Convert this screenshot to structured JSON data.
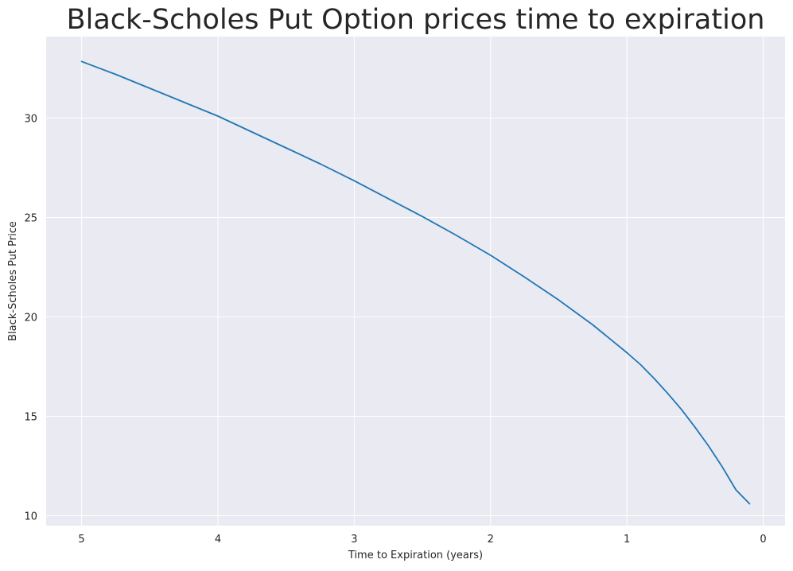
{
  "chart_data": {
    "type": "line",
    "title": "Black-Scholes Put Option prices time to expiration",
    "xlabel": "Time to Expiration (years)",
    "ylabel": "Black-Scholes Put Price",
    "xlim": [
      5.26,
      -0.16
    ],
    "ylim": [
      9.5,
      34.1
    ],
    "x_axis_inverted": true,
    "grid": true,
    "background_color": "#eaeaf2",
    "grid_color": "#ffffff",
    "line_color": "#1f77b4",
    "x_ticks": [
      5,
      4,
      3,
      2,
      1,
      0
    ],
    "x_tick_labels": [
      "5",
      "4",
      "3",
      "2",
      "1",
      "0"
    ],
    "y_ticks": [
      10,
      15,
      20,
      25,
      30
    ],
    "y_tick_labels": [
      "10",
      "15",
      "20",
      "25",
      "30"
    ],
    "series": [
      {
        "x": [
          5.0,
          4.75,
          4.5,
          4.25,
          4.0,
          3.75,
          3.5,
          3.25,
          3.0,
          2.75,
          2.5,
          2.25,
          2.0,
          1.75,
          1.5,
          1.25,
          1.0,
          0.9,
          0.8,
          0.7,
          0.6,
          0.5,
          0.4,
          0.3,
          0.2,
          0.1
        ],
        "y": [
          32.85,
          32.2,
          31.5,
          30.8,
          30.1,
          29.3,
          28.5,
          27.7,
          26.85,
          25.95,
          25.05,
          24.1,
          23.1,
          22.0,
          20.85,
          19.6,
          18.2,
          17.6,
          16.9,
          16.15,
          15.35,
          14.45,
          13.5,
          12.45,
          11.3,
          10.6
        ]
      }
    ]
  }
}
